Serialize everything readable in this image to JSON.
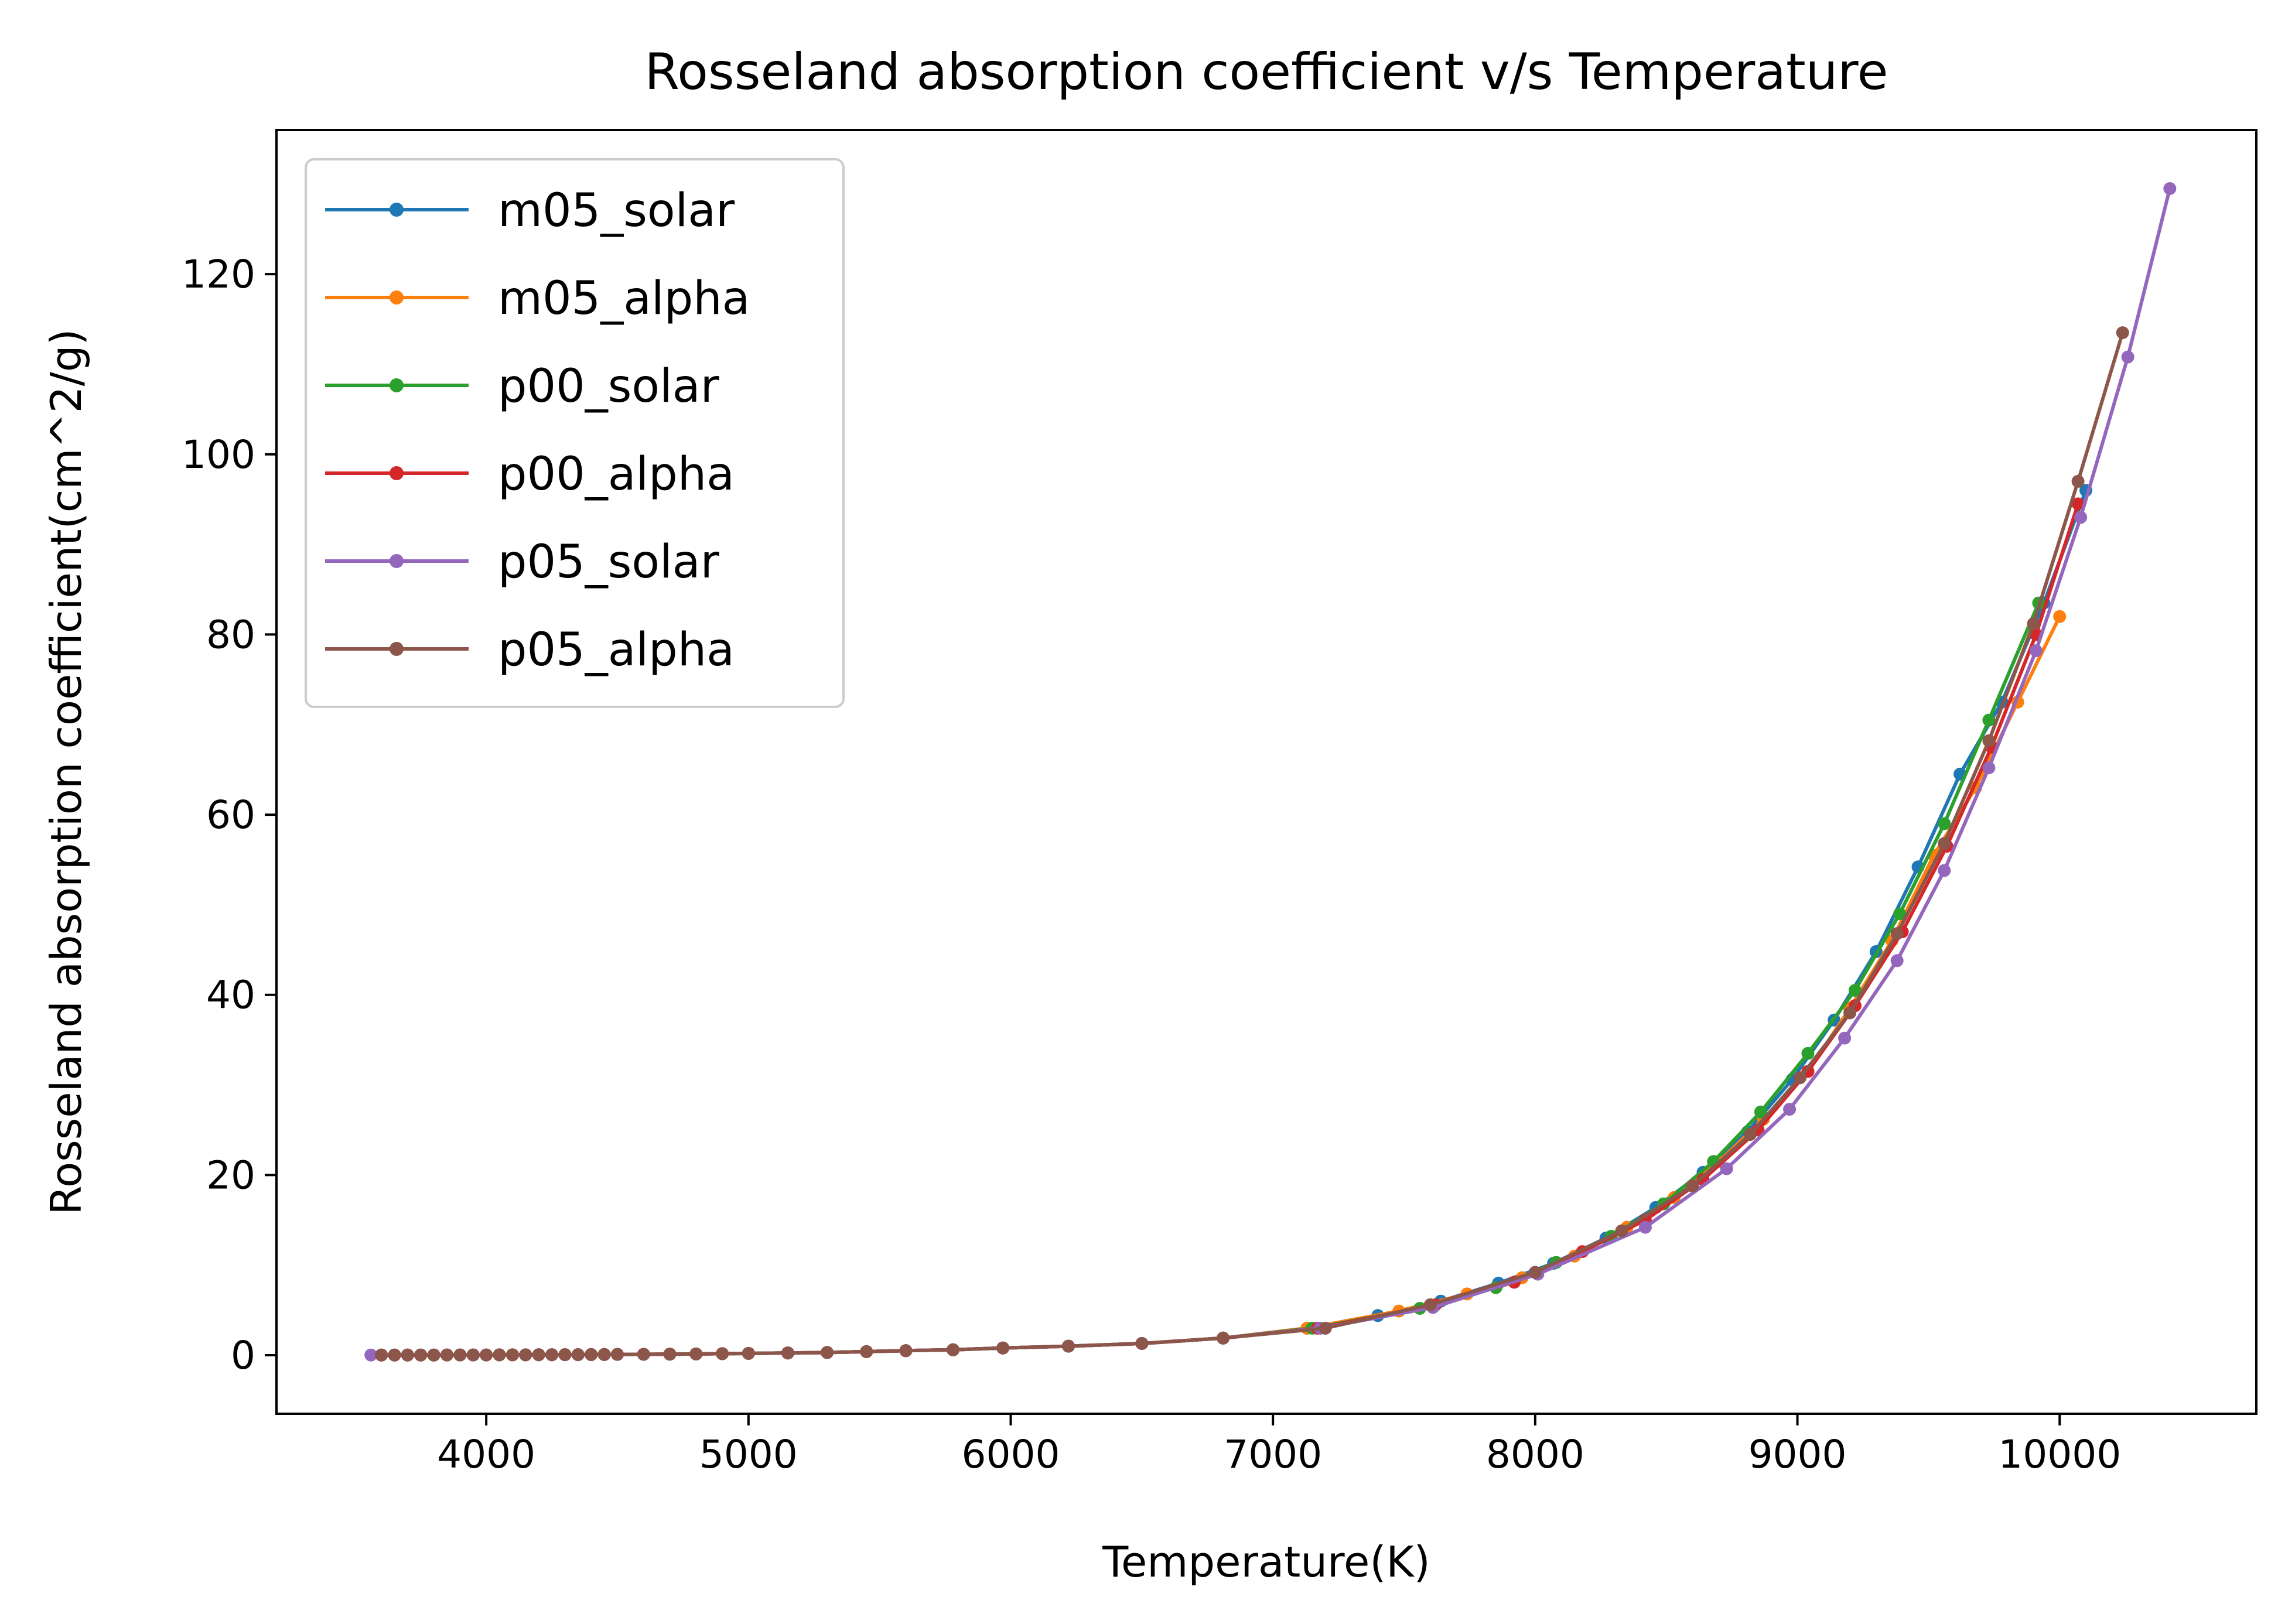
{
  "chart_data": {
    "type": "line",
    "title": "Rosseland absorption coefficient v/s Temperature",
    "xlabel": "Temperature(K)",
    "ylabel": "Rosseland absorption coefficient(cm^2/g)",
    "xlim": [
      3200,
      10750
    ],
    "ylim": [
      -6.5,
      136
    ],
    "xticks": [
      4000,
      5000,
      6000,
      7000,
      8000,
      9000,
      10000
    ],
    "yticks": [
      0,
      20,
      40,
      60,
      80,
      100,
      120
    ],
    "grid": false,
    "legend_position": "upper-left",
    "series": [
      {
        "name": "m05_solar",
        "color": "#1f77b4",
        "x": [
          3600,
          3650,
          3700,
          3750,
          3800,
          3850,
          3900,
          3950,
          4000,
          4050,
          4100,
          4150,
          4200,
          4250,
          4300,
          4350,
          4400,
          4450,
          4500,
          4600,
          4700,
          4800,
          4900,
          5000,
          5150,
          5300,
          5450,
          5600,
          5780,
          5970,
          6220,
          6500,
          6810,
          7130,
          7400,
          7640,
          7860,
          8070,
          8270,
          8460,
          8640,
          8810,
          8980,
          9140,
          9300,
          9460,
          9620,
          9780,
          9940,
          10100
        ],
        "y": [
          0.02,
          0.02,
          0.02,
          0.02,
          0.02,
          0.03,
          0.03,
          0.03,
          0.03,
          0.04,
          0.04,
          0.04,
          0.05,
          0.05,
          0.06,
          0.06,
          0.07,
          0.08,
          0.09,
          0.1,
          0.12,
          0.14,
          0.17,
          0.2,
          0.25,
          0.3,
          0.4,
          0.5,
          0.6,
          0.8,
          1.0,
          1.3,
          1.9,
          3.0,
          4.4,
          6.0,
          8.0,
          10.2,
          13.0,
          16.4,
          20.3,
          24.8,
          30.6,
          37.2,
          44.8,
          54.2,
          64.5,
          72.5,
          83.5,
          96.0
        ]
      },
      {
        "name": "m05_alpha",
        "color": "#ff7f0e",
        "x": [
          3600,
          3650,
          3700,
          3750,
          3800,
          3850,
          3900,
          3950,
          4000,
          4050,
          4100,
          4150,
          4200,
          4250,
          4300,
          4350,
          4400,
          4450,
          4500,
          4600,
          4700,
          4800,
          4900,
          5000,
          5150,
          5300,
          5450,
          5600,
          5780,
          5970,
          6220,
          6500,
          6810,
          7130,
          7480,
          7740,
          7950,
          8150,
          8350,
          8530,
          8700,
          8870,
          9040,
          9200,
          9360,
          9520,
          9680,
          9840,
          10000
        ],
        "y": [
          0.02,
          0.02,
          0.02,
          0.02,
          0.02,
          0.03,
          0.03,
          0.03,
          0.03,
          0.04,
          0.04,
          0.04,
          0.05,
          0.05,
          0.06,
          0.06,
          0.07,
          0.08,
          0.09,
          0.1,
          0.12,
          0.14,
          0.17,
          0.2,
          0.25,
          0.3,
          0.4,
          0.5,
          0.6,
          0.8,
          1.0,
          1.3,
          1.9,
          3.0,
          4.9,
          6.8,
          8.6,
          11.0,
          14.2,
          17.5,
          21.5,
          26.2,
          31.5,
          38.5,
          46.0,
          55.5,
          63.0,
          72.5,
          82.0
        ]
      },
      {
        "name": "p00_solar",
        "color": "#2ca02c",
        "x": [
          3600,
          3650,
          3700,
          3750,
          3800,
          3850,
          3900,
          3950,
          4000,
          4050,
          4100,
          4150,
          4200,
          4250,
          4300,
          4350,
          4400,
          4450,
          4500,
          4600,
          4700,
          4800,
          4900,
          5000,
          5150,
          5300,
          5450,
          5600,
          5780,
          5970,
          6220,
          6500,
          6810,
          7150,
          7560,
          7850,
          8080,
          8290,
          8490,
          8680,
          8860,
          9040,
          9220,
          9390,
          9560,
          9730,
          9920
        ],
        "y": [
          0.02,
          0.02,
          0.02,
          0.02,
          0.02,
          0.03,
          0.03,
          0.03,
          0.03,
          0.04,
          0.04,
          0.04,
          0.05,
          0.05,
          0.06,
          0.06,
          0.07,
          0.08,
          0.09,
          0.1,
          0.12,
          0.14,
          0.17,
          0.2,
          0.25,
          0.3,
          0.4,
          0.5,
          0.6,
          0.8,
          1.0,
          1.3,
          1.9,
          3.0,
          5.2,
          7.5,
          10.3,
          13.2,
          16.8,
          21.5,
          27.0,
          33.5,
          40.5,
          49.0,
          59.0,
          70.5,
          83.5
        ]
      },
      {
        "name": "p00_alpha",
        "color": "#d62728",
        "x": [
          3600,
          3650,
          3700,
          3750,
          3800,
          3850,
          3900,
          3950,
          4000,
          4050,
          4100,
          4150,
          4200,
          4250,
          4300,
          4350,
          4400,
          4450,
          4500,
          4600,
          4700,
          4800,
          4900,
          5000,
          5150,
          5300,
          5450,
          5600,
          5780,
          5970,
          6220,
          6500,
          6810,
          7170,
          7620,
          7920,
          8180,
          8420,
          8640,
          8850,
          9040,
          9220,
          9400,
          9570,
          9740,
          9910,
          10070
        ],
        "y": [
          0.02,
          0.02,
          0.02,
          0.02,
          0.02,
          0.03,
          0.03,
          0.03,
          0.03,
          0.04,
          0.04,
          0.04,
          0.05,
          0.05,
          0.06,
          0.06,
          0.07,
          0.08,
          0.09,
          0.1,
          0.12,
          0.14,
          0.17,
          0.2,
          0.25,
          0.3,
          0.4,
          0.5,
          0.6,
          0.8,
          1.0,
          1.3,
          1.9,
          3.0,
          5.6,
          8.1,
          11.5,
          15.0,
          19.5,
          25.0,
          31.5,
          38.8,
          47.0,
          56.5,
          67.5,
          80.0,
          94.5
        ]
      },
      {
        "name": "p05_solar",
        "color": "#9467bd",
        "x": [
          3560,
          3600,
          3650,
          3700,
          3750,
          3800,
          3850,
          3900,
          3950,
          4000,
          4050,
          4100,
          4150,
          4200,
          4250,
          4300,
          4350,
          4400,
          4450,
          4500,
          4600,
          4700,
          4800,
          4900,
          5000,
          5150,
          5300,
          5450,
          5600,
          5780,
          5970,
          6220,
          6500,
          6810,
          7180,
          7610,
          8010,
          8420,
          8730,
          8970,
          9180,
          9380,
          9560,
          9730,
          9910,
          10080,
          10260,
          10420
        ],
        "y": [
          0.02,
          0.02,
          0.02,
          0.02,
          0.02,
          0.02,
          0.03,
          0.03,
          0.03,
          0.03,
          0.04,
          0.04,
          0.04,
          0.05,
          0.05,
          0.06,
          0.06,
          0.07,
          0.08,
          0.09,
          0.1,
          0.12,
          0.14,
          0.17,
          0.2,
          0.25,
          0.3,
          0.4,
          0.5,
          0.6,
          0.8,
          1.0,
          1.3,
          1.9,
          3.0,
          5.3,
          9.0,
          14.2,
          20.7,
          27.3,
          35.2,
          43.8,
          53.8,
          65.2,
          78.2,
          93.0,
          110.8,
          129.5
        ]
      },
      {
        "name": "p05_alpha",
        "color": "#8c564b",
        "x": [
          3600,
          3650,
          3700,
          3750,
          3800,
          3850,
          3900,
          3950,
          4000,
          4050,
          4100,
          4150,
          4200,
          4250,
          4300,
          4350,
          4400,
          4450,
          4500,
          4600,
          4700,
          4800,
          4900,
          5000,
          5150,
          5300,
          5450,
          5600,
          5780,
          5970,
          6220,
          6500,
          6810,
          7200,
          7600,
          8000,
          8330,
          8600,
          8820,
          9010,
          9200,
          9380,
          9560,
          9730,
          9900,
          10070,
          10240
        ],
        "y": [
          0.02,
          0.02,
          0.02,
          0.02,
          0.02,
          0.03,
          0.03,
          0.03,
          0.03,
          0.04,
          0.04,
          0.04,
          0.05,
          0.05,
          0.06,
          0.06,
          0.07,
          0.08,
          0.09,
          0.1,
          0.12,
          0.14,
          0.17,
          0.2,
          0.25,
          0.3,
          0.4,
          0.5,
          0.6,
          0.8,
          1.0,
          1.3,
          1.9,
          3.0,
          5.6,
          9.2,
          13.8,
          18.8,
          24.5,
          30.8,
          38.0,
          46.8,
          56.8,
          68.2,
          81.2,
          97.0,
          113.5
        ]
      }
    ]
  }
}
